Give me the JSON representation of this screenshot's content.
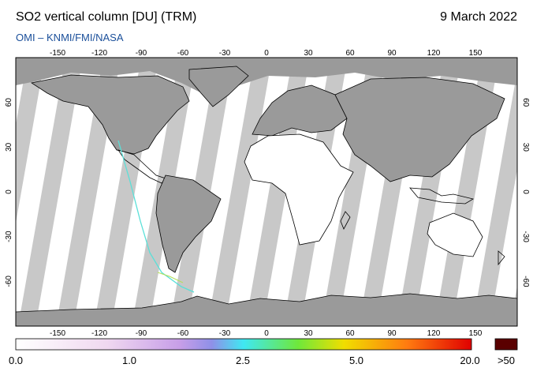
{
  "header": {
    "title": "SO2 vertical column [DU] (TRM)",
    "date": "9 March 2022",
    "source": "OMI  –  KNMI/FMI/NASA"
  },
  "map": {
    "lon_ticks": [
      "-150",
      "-120",
      "-90",
      "-60",
      "-30",
      "0",
      "30",
      "60",
      "90",
      "120",
      "150"
    ],
    "lat_ticks": [
      "60",
      "30",
      "0",
      "-30",
      "-60"
    ],
    "colors": {
      "land": "#9a9a9a",
      "gap": "#c8c8c8",
      "no_data": "#ffffff",
      "coast": "#000000"
    }
  },
  "colorbar": {
    "labels": [
      "0.0",
      "1.0",
      "2.5",
      "5.0",
      "20.0"
    ],
    "overflow_label": ">50",
    "colors": [
      "#ffffff",
      "#e9c9ef",
      "#b090e8",
      "#3fe6f0",
      "#7de83a",
      "#f5d800",
      "#ff7a00",
      "#e00000"
    ],
    "overflow_color": "#5a0000"
  }
}
